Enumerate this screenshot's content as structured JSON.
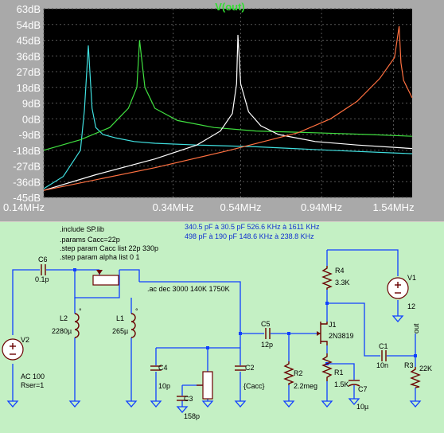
{
  "plot": {
    "title": "V(out)",
    "y_tick_labels": [
      "63dB",
      "54dB",
      "45dB",
      "36dB",
      "27dB",
      "18dB",
      "9dB",
      "0dB",
      "-9dB",
      "-18dB",
      "-27dB",
      "-36dB",
      "-45dB"
    ],
    "x_tick_labels": [
      "0.14MHz",
      "0.34MHz",
      "0.54MHz",
      "0.94MHz",
      "1.54MHz"
    ],
    "colors": {
      "background": "#000000",
      "grid": "#555555",
      "cyan": "#40e0e0",
      "green": "#40e040",
      "white": "#ffffff",
      "orange": "#ff7040"
    }
  },
  "chart_data": {
    "type": "line",
    "title": "V(out)",
    "x_scale": "log",
    "xlim": [
      0.14,
      1.75
    ],
    "ylim": [
      -45,
      63
    ],
    "x_ticks": [
      0.14,
      0.34,
      0.54,
      0.94,
      1.54
    ],
    "y_ticks": [
      63,
      54,
      45,
      36,
      27,
      18,
      9,
      0,
      -9,
      -18,
      -27,
      -36,
      -45
    ],
    "grid": true,
    "series": [
      {
        "color": "#40e0e0",
        "x": [
          0.14,
          0.16,
          0.18,
          0.185,
          0.19,
          0.195,
          0.2,
          0.21,
          0.23,
          0.26,
          0.3,
          0.4,
          0.6,
          1.0,
          1.75
        ],
        "y": [
          -40,
          -33,
          -18,
          5,
          42,
          6,
          -5,
          -9,
          -11,
          -13,
          -14,
          -15,
          -16,
          -18,
          -20
        ]
      },
      {
        "color": "#40e040",
        "x": [
          0.14,
          0.18,
          0.22,
          0.25,
          0.265,
          0.27,
          0.28,
          0.3,
          0.35,
          0.45,
          0.6,
          0.9,
          1.3,
          1.75
        ],
        "y": [
          -18,
          -12,
          -5,
          6,
          18,
          45,
          18,
          6,
          -1,
          -5,
          -7,
          -8,
          -9,
          -10
        ]
      },
      {
        "color": "#ffffff",
        "x": [
          0.14,
          0.2,
          0.3,
          0.4,
          0.47,
          0.51,
          0.525,
          0.53,
          0.54,
          0.57,
          0.62,
          0.7,
          0.9,
          1.2,
          1.75
        ],
        "y": [
          -41,
          -32,
          -23,
          -15,
          -7,
          3,
          20,
          48,
          20,
          4,
          -4,
          -9,
          -13,
          -15,
          -17
        ]
      },
      {
        "color": "#ff7040",
        "x": [
          0.14,
          0.3,
          0.5,
          0.8,
          1.0,
          1.2,
          1.4,
          1.55,
          1.6,
          1.62,
          1.65,
          1.75
        ],
        "y": [
          -41,
          -28,
          -18,
          -8,
          0,
          10,
          23,
          35,
          53,
          32,
          22,
          12
        ]
      }
    ]
  },
  "schematic": {
    "spice": {
      "include": ".include SP.lib",
      "params": ".params Cacc=22p",
      "step1": ".step param Cacc list 22p 330p",
      "step2": ".step param alpha list 0 1",
      "ac": ".ac dec 3000 140K 1750K"
    },
    "notes": {
      "line1": "340.5 pF à 30.5 pF 526.6 KHz à 1611 KHz",
      "line2": "498 pF à 190 pF 148.6 KHz à 238.8 KHz"
    },
    "components": {
      "c6_name": "C6",
      "c6_value": "0.1p",
      "c5_name": "C5",
      "c5_value": "12p",
      "c4_name": "C4",
      "c4_value": "10p",
      "c3_name": "C3",
      "c3_value": "158p",
      "c2_name": "C2",
      "c2_value": "{Cacc}",
      "c1_name": "C1",
      "c1_value": "10n",
      "c7_name": "C7",
      "c7_value": "10µ",
      "l2_name": "L2",
      "l2_value": "2280µ",
      "l1_name": "L1",
      "l1_value": "265µ",
      "v2_name": "V2",
      "v2_value1": "AC 100",
      "v2_value2": "Rser=1",
      "v1_name": "V1",
      "v1_value": "12",
      "r4_name": "R4",
      "r4_value": "3.3K",
      "r2_name": "R2",
      "r2_value": "2.2meg",
      "r1_name": "R1",
      "r1_value": "1.5K",
      "r3_name": "R3",
      "r3_value": "22K",
      "j1_name": "J1",
      "j1_value": "2N3819",
      "out_label": "out"
    }
  }
}
